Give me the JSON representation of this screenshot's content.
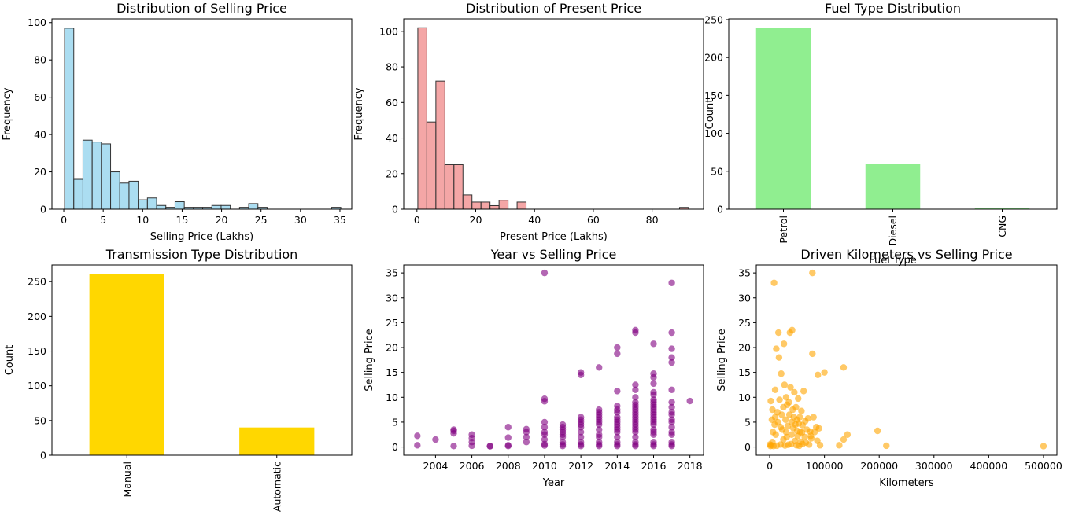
{
  "chart_data": [
    {
      "type": "bar",
      "title": "Distribution of Selling Price",
      "xlabel": "Selling Price (Lakhs)",
      "ylabel": "Frequency",
      "xlim": [
        -1.5,
        36.5
      ],
      "ylim": [
        0,
        102
      ],
      "xticks": [
        0,
        5,
        10,
        15,
        20,
        25,
        30,
        35
      ],
      "yticks": [
        0,
        20,
        40,
        60,
        80,
        100
      ],
      "bin_start": 0.1,
      "bin_width": 1.167,
      "values": [
        97,
        16,
        37,
        36,
        35,
        20,
        14,
        15,
        5,
        6,
        2,
        1,
        4,
        1,
        1,
        1,
        2,
        2,
        0,
        1,
        3,
        1,
        0,
        0,
        0,
        0,
        0,
        0,
        0,
        1
      ],
      "color": "#87ceeb",
      "edge": "#333333"
    },
    {
      "type": "bar",
      "title": "Distribution of Present Price",
      "xlabel": "Present Price (Lakhs)",
      "ylabel": "Frequency",
      "xlim": [
        -4.5,
        97.5
      ],
      "ylim": [
        0,
        107
      ],
      "xticks": [
        0,
        20,
        40,
        60,
        80
      ],
      "yticks": [
        0,
        20,
        40,
        60,
        80,
        100
      ],
      "bin_start": 0.3,
      "bin_width": 3.07,
      "values": [
        102,
        49,
        72,
        25,
        25,
        8,
        4,
        4,
        2,
        5,
        0,
        4,
        0,
        0,
        0,
        0,
        0,
        0,
        0,
        0,
        0,
        0,
        0,
        0,
        0,
        0,
        0,
        0,
        0,
        1
      ],
      "color": "#f08080",
      "edge": "#333333"
    },
    {
      "type": "bar",
      "title": "Fuel Type Distribution",
      "xlabel": "Fuel Type",
      "ylabel": "Count",
      "categories": [
        "Petrol",
        "Diesel",
        "CNG"
      ],
      "values": [
        239,
        60,
        2
      ],
      "ylim": [
        0,
        251
      ],
      "yticks": [
        0,
        50,
        100,
        150,
        200,
        250
      ],
      "color": "#90ee90"
    },
    {
      "type": "bar",
      "title": "Transmission Type Distribution",
      "xlabel": "",
      "ylabel": "Count",
      "categories": [
        "Manual",
        "Automatic"
      ],
      "values": [
        261,
        40
      ],
      "ylim": [
        0,
        274
      ],
      "yticks": [
        0,
        50,
        100,
        150,
        200,
        250
      ],
      "color": "#ffd700"
    },
    {
      "type": "scatter",
      "title": "Year vs Selling Price",
      "xlabel": "Year",
      "ylabel": "Selling Price",
      "xlim": [
        2002.25,
        2018.75
      ],
      "ylim": [
        -1.65,
        36.6
      ],
      "xticks": [
        2004,
        2006,
        2008,
        2010,
        2012,
        2014,
        2016,
        2018
      ],
      "yticks": [
        0,
        5,
        10,
        15,
        20,
        25,
        30,
        35
      ],
      "color": "#800080",
      "points": [
        [
          2003,
          0.35
        ],
        [
          2003,
          2.25
        ],
        [
          2004,
          1.5
        ],
        [
          2005,
          0.2
        ],
        [
          2005,
          2.75
        ],
        [
          2005,
          3.25
        ],
        [
          2005,
          3.5
        ],
        [
          2006,
          0.25
        ],
        [
          2006,
          1.0
        ],
        [
          2006,
          1.8
        ],
        [
          2006,
          2.5
        ],
        [
          2007,
          0.15
        ],
        [
          2007,
          0.2
        ],
        [
          2008,
          0.2
        ],
        [
          2008,
          0.35
        ],
        [
          2008,
          1.9
        ],
        [
          2008,
          4.0
        ],
        [
          2009,
          1.0
        ],
        [
          2009,
          2.0
        ],
        [
          2009,
          3.0
        ],
        [
          2009,
          3.6
        ],
        [
          2010,
          0.3
        ],
        [
          2010,
          0.6
        ],
        [
          2010,
          1.5
        ],
        [
          2010,
          2.5
        ],
        [
          2010,
          3.0
        ],
        [
          2010,
          4.0
        ],
        [
          2010,
          5.0
        ],
        [
          2010,
          9.2
        ],
        [
          2010,
          9.7
        ],
        [
          2010,
          35.0
        ],
        [
          2011,
          0.2
        ],
        [
          2011,
          0.5
        ],
        [
          2011,
          1.0
        ],
        [
          2011,
          2.0
        ],
        [
          2011,
          2.5
        ],
        [
          2011,
          3.0
        ],
        [
          2011,
          3.5
        ],
        [
          2011,
          4.0
        ],
        [
          2011,
          4.5
        ],
        [
          2012,
          0.2
        ],
        [
          2012,
          0.5
        ],
        [
          2012,
          1.0
        ],
        [
          2012,
          2.0
        ],
        [
          2012,
          3.0
        ],
        [
          2012,
          4.0
        ],
        [
          2012,
          4.5
        ],
        [
          2012,
          5.0
        ],
        [
          2012,
          5.5
        ],
        [
          2012,
          6.0
        ],
        [
          2012,
          14.5
        ],
        [
          2012,
          15.0
        ],
        [
          2013,
          0.2
        ],
        [
          2013,
          0.5
        ],
        [
          2013,
          1.0
        ],
        [
          2013,
          2.0
        ],
        [
          2013,
          2.5
        ],
        [
          2013,
          3.5
        ],
        [
          2013,
          4.5
        ],
        [
          2013,
          5.0
        ],
        [
          2013,
          5.5
        ],
        [
          2013,
          6.0
        ],
        [
          2013,
          6.5
        ],
        [
          2013,
          7.0
        ],
        [
          2013,
          7.5
        ],
        [
          2013,
          16.0
        ],
        [
          2014,
          0.2
        ],
        [
          2014,
          0.5
        ],
        [
          2014,
          1.0
        ],
        [
          2014,
          2.0
        ],
        [
          2014,
          3.0
        ],
        [
          2014,
          3.5
        ],
        [
          2014,
          4.0
        ],
        [
          2014,
          4.5
        ],
        [
          2014,
          5.0
        ],
        [
          2014,
          5.5
        ],
        [
          2014,
          6.0
        ],
        [
          2014,
          7.0
        ],
        [
          2014,
          7.5
        ],
        [
          2014,
          8.25
        ],
        [
          2014,
          11.25
        ],
        [
          2014,
          18.75
        ],
        [
          2014,
          20.0
        ],
        [
          2015,
          0.2
        ],
        [
          2015,
          0.5
        ],
        [
          2015,
          1.0
        ],
        [
          2015,
          2.0
        ],
        [
          2015,
          3.0
        ],
        [
          2015,
          3.5
        ],
        [
          2015,
          4.0
        ],
        [
          2015,
          4.5
        ],
        [
          2015,
          5.0
        ],
        [
          2015,
          5.5
        ],
        [
          2015,
          6.0
        ],
        [
          2015,
          6.5
        ],
        [
          2015,
          7.0
        ],
        [
          2015,
          7.5
        ],
        [
          2015,
          8.0
        ],
        [
          2015,
          8.5
        ],
        [
          2015,
          9.0
        ],
        [
          2015,
          10.0
        ],
        [
          2015,
          11.5
        ],
        [
          2015,
          12.5
        ],
        [
          2015,
          23.0
        ],
        [
          2015,
          23.5
        ],
        [
          2016,
          0.2
        ],
        [
          2016,
          0.5
        ],
        [
          2016,
          1.0
        ],
        [
          2016,
          2.5
        ],
        [
          2016,
          3.0
        ],
        [
          2016,
          3.5
        ],
        [
          2016,
          4.5
        ],
        [
          2016,
          5.0
        ],
        [
          2016,
          5.5
        ],
        [
          2016,
          6.0
        ],
        [
          2016,
          6.5
        ],
        [
          2016,
          7.0
        ],
        [
          2016,
          7.5
        ],
        [
          2016,
          8.0
        ],
        [
          2016,
          8.5
        ],
        [
          2016,
          9.0
        ],
        [
          2016,
          9.5
        ],
        [
          2016,
          10.5
        ],
        [
          2016,
          11.0
        ],
        [
          2016,
          12.75
        ],
        [
          2016,
          14.0
        ],
        [
          2016,
          14.75
        ],
        [
          2016,
          20.75
        ],
        [
          2017,
          0.2
        ],
        [
          2017,
          0.5
        ],
        [
          2017,
          1.0
        ],
        [
          2017,
          2.5
        ],
        [
          2017,
          3.0
        ],
        [
          2017,
          4.0
        ],
        [
          2017,
          5.0
        ],
        [
          2017,
          5.5
        ],
        [
          2017,
          6.5
        ],
        [
          2017,
          7.0
        ],
        [
          2017,
          8.0
        ],
        [
          2017,
          9.0
        ],
        [
          2017,
          11.5
        ],
        [
          2017,
          17.0
        ],
        [
          2017,
          18.0
        ],
        [
          2017,
          19.75
        ],
        [
          2017,
          23.0
        ],
        [
          2017,
          33.0
        ],
        [
          2018,
          9.25
        ]
      ]
    },
    {
      "type": "scatter",
      "title": "Driven Kilometers vs Selling Price",
      "xlabel": "Kilometers",
      "ylabel": "Selling Price",
      "xlim": [
        -24500,
        524500
      ],
      "ylim": [
        -1.65,
        36.6
      ],
      "xticks": [
        0,
        100000,
        200000,
        300000,
        400000,
        500000
      ],
      "yticks": [
        0,
        5,
        10,
        15,
        20,
        25,
        30,
        35
      ],
      "color": "#ffa500",
      "points": [
        [
          500,
          0.5
        ],
        [
          1500,
          0.2
        ],
        [
          2000,
          9.25
        ],
        [
          3000,
          0.35
        ],
        [
          4000,
          5.5
        ],
        [
          5000,
          7.5
        ],
        [
          5000,
          1.0
        ],
        [
          6000,
          3.0
        ],
        [
          7000,
          0.2
        ],
        [
          8000,
          33.0
        ],
        [
          9000,
          4.5
        ],
        [
          10000,
          11.5
        ],
        [
          10000,
          6.0
        ],
        [
          11000,
          2.5
        ],
        [
          12000,
          19.75
        ],
        [
          13000,
          0.25
        ],
        [
          14000,
          7.0
        ],
        [
          15000,
          5.0
        ],
        [
          16000,
          23.0
        ],
        [
          17000,
          18.0
        ],
        [
          18000,
          9.5
        ],
        [
          20000,
          0.5
        ],
        [
          20000,
          4.0
        ],
        [
          21000,
          14.75
        ],
        [
          22000,
          6.5
        ],
        [
          23000,
          3.5
        ],
        [
          25000,
          8.0
        ],
        [
          25000,
          1.5
        ],
        [
          26000,
          20.75
        ],
        [
          27000,
          12.5
        ],
        [
          28000,
          0.3
        ],
        [
          29000,
          5.5
        ],
        [
          30000,
          10.0
        ],
        [
          30000,
          3.0
        ],
        [
          31000,
          2.0
        ],
        [
          32000,
          8.5
        ],
        [
          33000,
          4.25
        ],
        [
          34000,
          0.45
        ],
        [
          35000,
          9.0
        ],
        [
          36000,
          6.5
        ],
        [
          37000,
          23.0
        ],
        [
          38000,
          12.0
        ],
        [
          39000,
          0.6
        ],
        [
          40000,
          5.0
        ],
        [
          40000,
          2.5
        ],
        [
          41000,
          23.5
        ],
        [
          42000,
          7.5
        ],
        [
          43000,
          3.8
        ],
        [
          44000,
          6.0
        ],
        [
          45000,
          11.0
        ],
        [
          46000,
          1.2
        ],
        [
          47000,
          4.5
        ],
        [
          48000,
          8.0
        ],
        [
          49000,
          0.35
        ],
        [
          50000,
          5.5
        ],
        [
          50000,
          3.25
        ],
        [
          51000,
          2.2
        ],
        [
          52000,
          9.75
        ],
        [
          53000,
          4.75
        ],
        [
          54000,
          0.25
        ],
        [
          55000,
          6.0
        ],
        [
          56000,
          3.0
        ],
        [
          57000,
          1.05
        ],
        [
          58000,
          7.25
        ],
        [
          59000,
          2.9
        ],
        [
          60000,
          4.4
        ],
        [
          60000,
          0.6
        ],
        [
          62000,
          11.25
        ],
        [
          64000,
          2.0
        ],
        [
          65000,
          5.2
        ],
        [
          66000,
          0.9
        ],
        [
          68000,
          3.5
        ],
        [
          70000,
          5.75
        ],
        [
          72000,
          0.5
        ],
        [
          74000,
          3.1
        ],
        [
          75000,
          2.25
        ],
        [
          76000,
          1.75
        ],
        [
          78000,
          18.75
        ],
        [
          78000,
          35.0
        ],
        [
          80000,
          6.0
        ],
        [
          82000,
          3.0
        ],
        [
          85000,
          4.0
        ],
        [
          87000,
          1.25
        ],
        [
          88000,
          14.5
        ],
        [
          90000,
          3.75
        ],
        [
          92000,
          0.35
        ],
        [
          100000,
          15.0
        ],
        [
          127000,
          0.35
        ],
        [
          135000,
          16.0
        ],
        [
          135000,
          1.5
        ],
        [
          142000,
          2.5
        ],
        [
          197000,
          3.25
        ],
        [
          213000,
          0.25
        ],
        [
          500000,
          0.17
        ]
      ]
    }
  ]
}
